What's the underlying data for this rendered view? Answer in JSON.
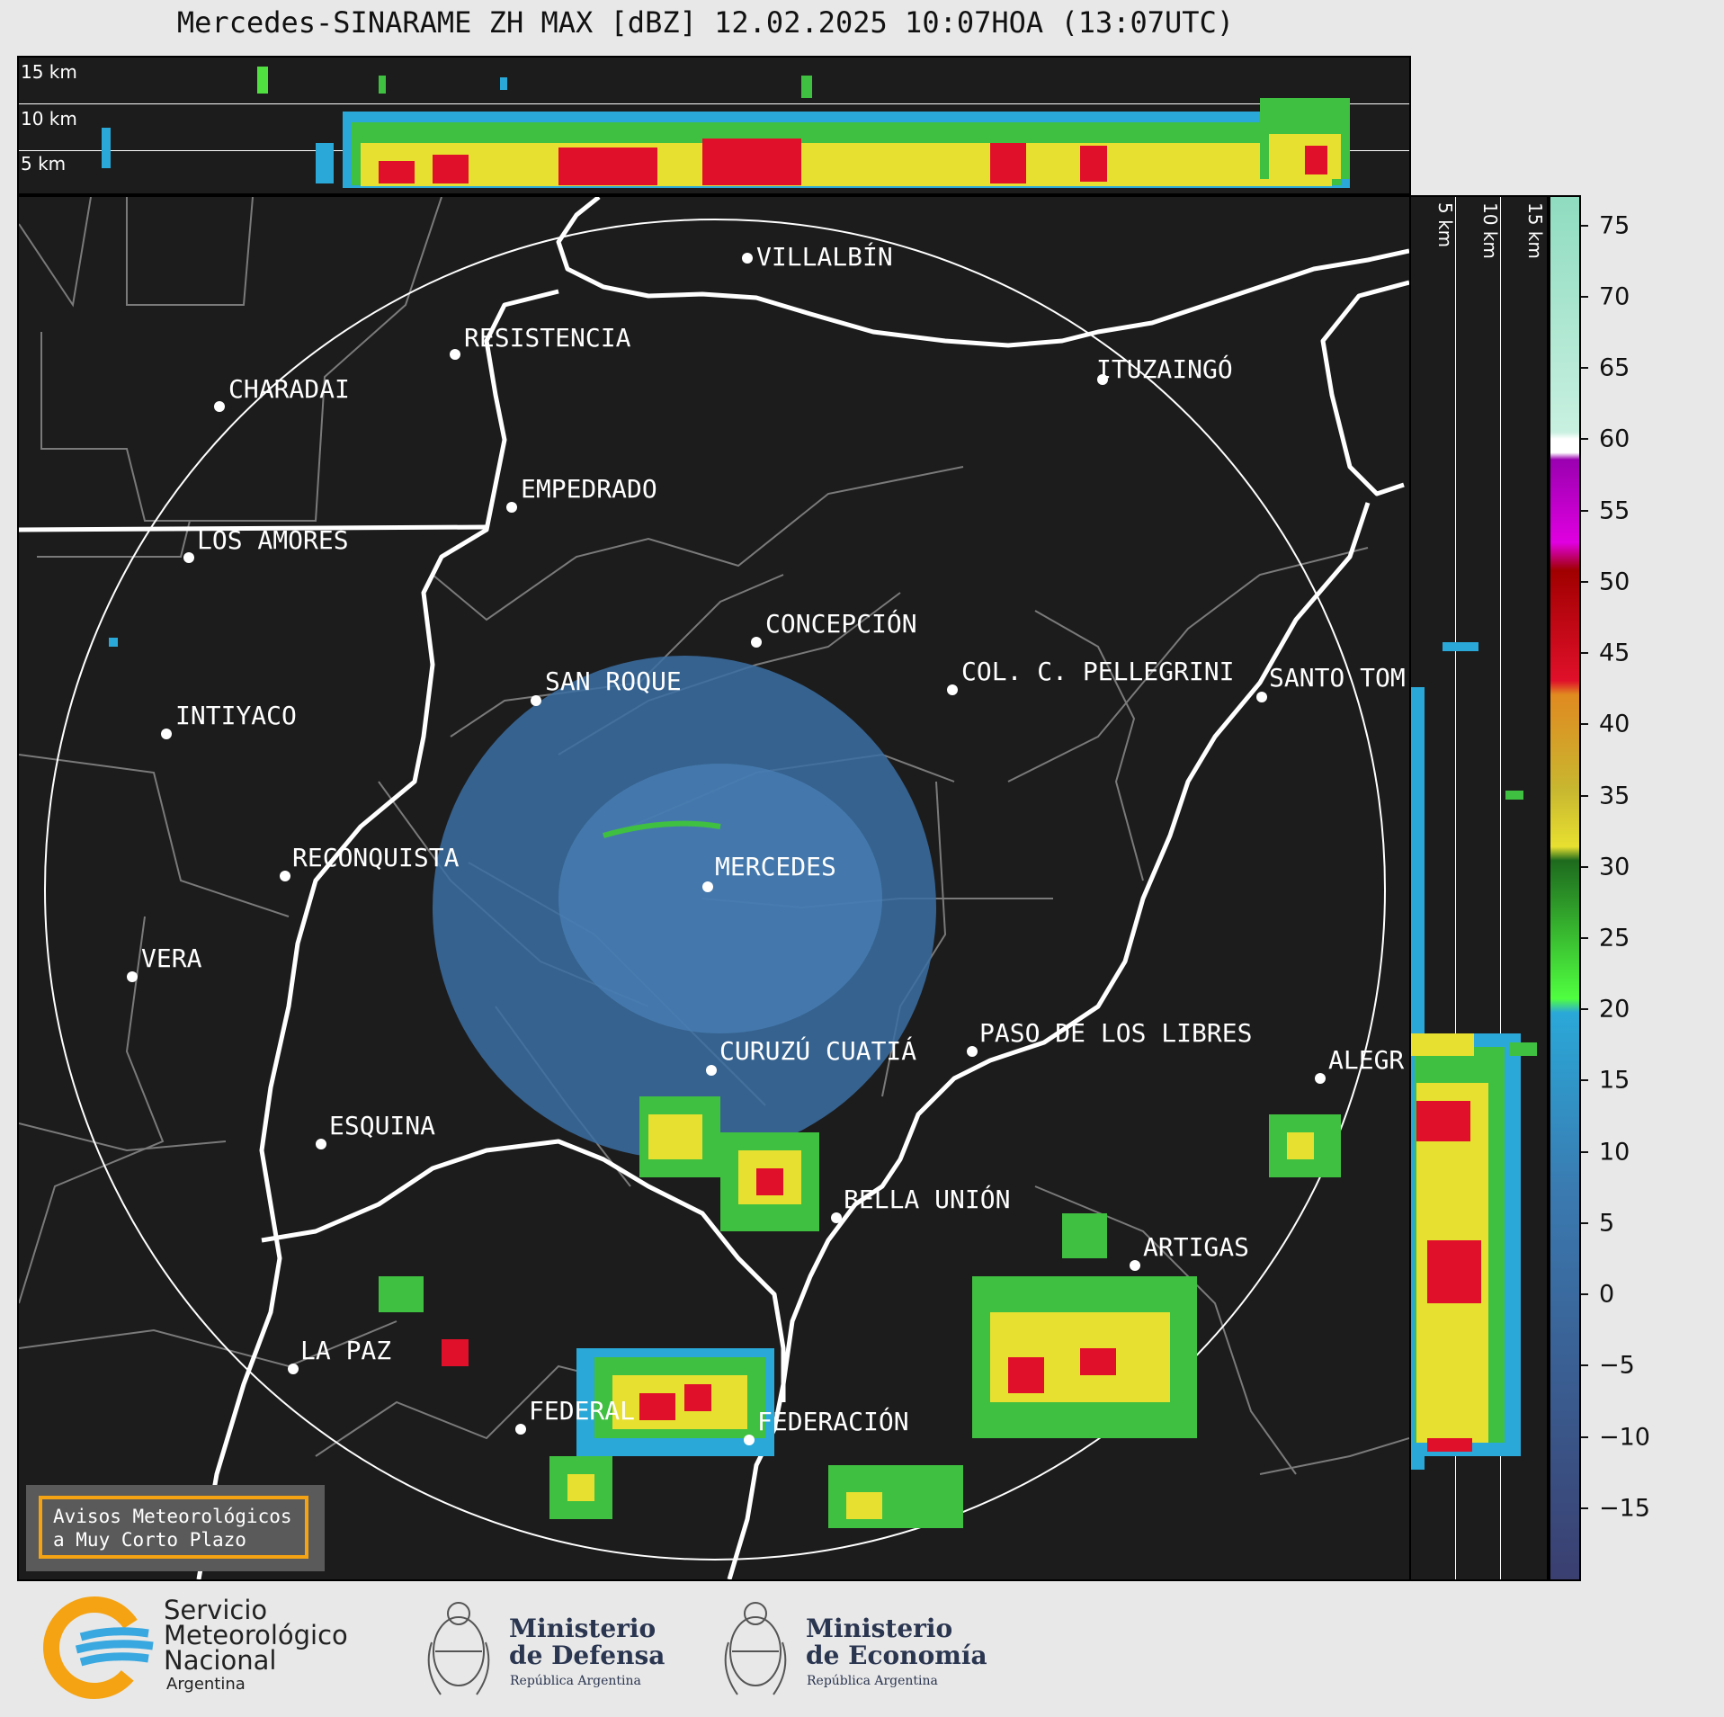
{
  "title": "Mercedes-SINARAME ZH MAX [dBZ] 12.02.2025 10:07HOA (13:07UTC)",
  "top_panel": {
    "altitude_labels": [
      "15 km",
      "10 km",
      "5 km"
    ]
  },
  "side_panel": {
    "altitude_labels": [
      "5 km",
      "10 km",
      "15 km"
    ]
  },
  "colorbar": {
    "ticks": [
      "75",
      "70",
      "65",
      "60",
      "55",
      "50",
      "45",
      "40",
      "35",
      "30",
      "25",
      "20",
      "15",
      "10",
      "5",
      "0",
      "−5",
      "−10",
      "−15"
    ],
    "range_dbz": [
      -20,
      77
    ],
    "colors": {
      "teal_high": "#8fdcc0",
      "white": "#ffffff",
      "purple": "#9a00b0",
      "magenta": "#e000e0",
      "dark_red": "#a00000",
      "red": "#e0102a",
      "orange": "#e08a20",
      "yellow": "#e8e030",
      "green_dark": "#1e6a1e",
      "green": "#40c040",
      "green_light": "#50ff40",
      "blue": "#2aa8d8",
      "blue_mid": "#3a7ab0",
      "navy": "#3a3f70"
    }
  },
  "cities": [
    {
      "name": "VILLALBÍN"
    },
    {
      "name": "RESISTENCIA"
    },
    {
      "name": "CHARADAI"
    },
    {
      "name": "ITUZAINGÓ"
    },
    {
      "name": "EMPEDRADO"
    },
    {
      "name": "LOS AMORES"
    },
    {
      "name": "CONCEPCIÓN"
    },
    {
      "name": "SAN ROQUE"
    },
    {
      "name": "COL. C. PELLEGRINI"
    },
    {
      "name": "SANTO TOM"
    },
    {
      "name": "INTIYACO"
    },
    {
      "name": "MERCEDES"
    },
    {
      "name": "RECONQUISTA"
    },
    {
      "name": "VERA"
    },
    {
      "name": "CURUZÚ CUATIÁ"
    },
    {
      "name": "PASO DE LOS LIBRES"
    },
    {
      "name": "ALEGR"
    },
    {
      "name": "ESQUINA"
    },
    {
      "name": "BELLA UNIÓN"
    },
    {
      "name": "ARTIGAS"
    },
    {
      "name": "LA PAZ"
    },
    {
      "name": "FEDERAL"
    },
    {
      "name": "FEDERACIÓN"
    }
  ],
  "warning_box": {
    "line1": "Avisos Meteorológicos",
    "line2": "a Muy Corto Plazo"
  },
  "footer": {
    "smn": {
      "line1": "Servicio",
      "line2": "Meteorológico",
      "line3": "Nacional",
      "line4": "Argentina"
    },
    "defensa": {
      "line1": "Ministerio",
      "line2": "de Defensa",
      "sub": "República Argentina"
    },
    "economia": {
      "line1": "Ministerio",
      "line2": "de Economía",
      "sub": "República Argentina"
    }
  }
}
